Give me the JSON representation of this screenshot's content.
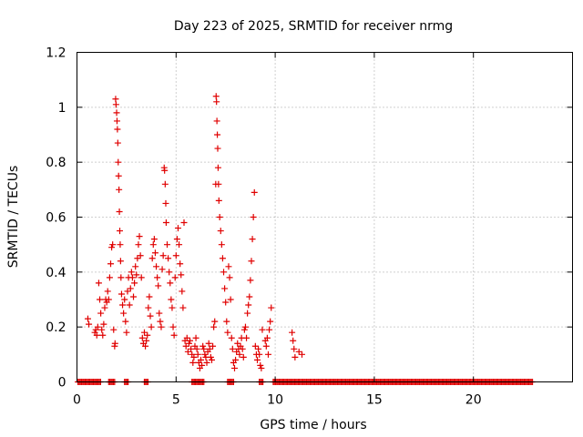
{
  "chart_data": {
    "type": "scatter",
    "title": "Day 223 of 2025, SRMTID for receiver nrmg",
    "xlabel": "GPS time / hours",
    "ylabel": "SRMTID / TECUs",
    "xlim": [
      0,
      25
    ],
    "ylim": [
      0,
      1.2
    ],
    "xticks": [
      0,
      5,
      10,
      15,
      20
    ],
    "xtick_labels": [
      "0",
      "5",
      "10",
      "15",
      "20"
    ],
    "yticks": [
      0,
      0.2,
      0.4,
      0.6,
      0.8,
      1,
      1.2
    ],
    "ytick_labels": [
      "0",
      "0.2",
      "0.4",
      "0.6",
      "0.8",
      "1",
      "1.2"
    ],
    "grid": true,
    "marker": "+",
    "color": "#e00000",
    "series": [
      {
        "name": "SRMTID",
        "points": [
          [
            0.55,
            0.23
          ],
          [
            0.6,
            0.21
          ],
          [
            0.9,
            0.18
          ],
          [
            0.95,
            0.19
          ],
          [
            1.0,
            0.17
          ],
          [
            1.05,
            0.2
          ],
          [
            1.1,
            0.36
          ],
          [
            1.15,
            0.3
          ],
          [
            1.2,
            0.25
          ],
          [
            1.25,
            0.19
          ],
          [
            1.3,
            0.17
          ],
          [
            1.35,
            0.21
          ],
          [
            1.4,
            0.27
          ],
          [
            1.45,
            0.3
          ],
          [
            1.5,
            0.29
          ],
          [
            1.55,
            0.33
          ],
          [
            1.6,
            0.3
          ],
          [
            1.65,
            0.38
          ],
          [
            1.7,
            0.43
          ],
          [
            1.75,
            0.49
          ],
          [
            1.8,
            0.5
          ],
          [
            1.85,
            0.19
          ],
          [
            1.9,
            0.13
          ],
          [
            1.92,
            0.14
          ],
          [
            1.95,
            1.03
          ],
          [
            1.97,
            1.01
          ],
          [
            2.0,
            0.98
          ],
          [
            2.02,
            0.95
          ],
          [
            2.04,
            0.92
          ],
          [
            2.06,
            0.87
          ],
          [
            2.08,
            0.8
          ],
          [
            2.1,
            0.75
          ],
          [
            2.12,
            0.7
          ],
          [
            2.14,
            0.62
          ],
          [
            2.16,
            0.55
          ],
          [
            2.18,
            0.5
          ],
          [
            2.2,
            0.44
          ],
          [
            2.22,
            0.38
          ],
          [
            2.25,
            0.32
          ],
          [
            2.3,
            0.28
          ],
          [
            2.35,
            0.25
          ],
          [
            2.4,
            0.3
          ],
          [
            2.45,
            0.22
          ],
          [
            2.5,
            0.18
          ],
          [
            2.55,
            0.33
          ],
          [
            2.6,
            0.38
          ],
          [
            2.65,
            0.28
          ],
          [
            2.7,
            0.34
          ],
          [
            2.75,
            0.4
          ],
          [
            2.8,
            0.38
          ],
          [
            2.85,
            0.31
          ],
          [
            2.9,
            0.36
          ],
          [
            2.95,
            0.42
          ],
          [
            3.0,
            0.39
          ],
          [
            3.05,
            0.45
          ],
          [
            3.1,
            0.5
          ],
          [
            3.15,
            0.53
          ],
          [
            3.2,
            0.46
          ],
          [
            3.25,
            0.38
          ],
          [
            3.3,
            0.16
          ],
          [
            3.35,
            0.14
          ],
          [
            3.4,
            0.18
          ],
          [
            3.45,
            0.13
          ],
          [
            3.5,
            0.15
          ],
          [
            3.55,
            0.17
          ],
          [
            3.6,
            0.27
          ],
          [
            3.65,
            0.31
          ],
          [
            3.7,
            0.24
          ],
          [
            3.75,
            0.2
          ],
          [
            3.8,
            0.45
          ],
          [
            3.85,
            0.5
          ],
          [
            3.9,
            0.52
          ],
          [
            3.95,
            0.47
          ],
          [
            4.0,
            0.42
          ],
          [
            4.05,
            0.38
          ],
          [
            4.1,
            0.35
          ],
          [
            4.15,
            0.25
          ],
          [
            4.2,
            0.22
          ],
          [
            4.25,
            0.2
          ],
          [
            4.3,
            0.41
          ],
          [
            4.35,
            0.46
          ],
          [
            4.4,
            0.78
          ],
          [
            4.42,
            0.77
          ],
          [
            4.45,
            0.72
          ],
          [
            4.48,
            0.65
          ],
          [
            4.5,
            0.58
          ],
          [
            4.55,
            0.5
          ],
          [
            4.6,
            0.45
          ],
          [
            4.65,
            0.4
          ],
          [
            4.7,
            0.36
          ],
          [
            4.75,
            0.3
          ],
          [
            4.8,
            0.27
          ],
          [
            4.85,
            0.2
          ],
          [
            4.9,
            0.17
          ],
          [
            4.95,
            0.38
          ],
          [
            5.0,
            0.46
          ],
          [
            5.05,
            0.52
          ],
          [
            5.1,
            0.56
          ],
          [
            5.15,
            0.5
          ],
          [
            5.2,
            0.43
          ],
          [
            5.25,
            0.39
          ],
          [
            5.3,
            0.33
          ],
          [
            5.35,
            0.27
          ],
          [
            5.4,
            0.58
          ],
          [
            5.45,
            0.15
          ],
          [
            5.5,
            0.13
          ],
          [
            5.55,
            0.16
          ],
          [
            5.6,
            0.11
          ],
          [
            5.65,
            0.14
          ],
          [
            5.7,
            0.15
          ],
          [
            5.75,
            0.12
          ],
          [
            5.8,
            0.1
          ],
          [
            5.85,
            0.07
          ],
          [
            5.9,
            0.09
          ],
          [
            5.95,
            0.13
          ],
          [
            6.0,
            0.16
          ],
          [
            6.05,
            0.12
          ],
          [
            6.1,
            0.1
          ],
          [
            6.15,
            0.07
          ],
          [
            6.2,
            0.05
          ],
          [
            6.25,
            0.08
          ],
          [
            6.3,
            0.06
          ],
          [
            6.35,
            0.13
          ],
          [
            6.4,
            0.12
          ],
          [
            6.45,
            0.1
          ],
          [
            6.5,
            0.09
          ],
          [
            6.55,
            0.07
          ],
          [
            6.6,
            0.11
          ],
          [
            6.65,
            0.14
          ],
          [
            6.7,
            0.12
          ],
          [
            6.75,
            0.09
          ],
          [
            6.8,
            0.08
          ],
          [
            6.85,
            0.13
          ],
          [
            6.9,
            0.2
          ],
          [
            6.95,
            0.22
          ],
          [
            7.0,
            0.72
          ],
          [
            7.02,
            1.04
          ],
          [
            7.04,
            1.02
          ],
          [
            7.06,
            0.95
          ],
          [
            7.08,
            0.9
          ],
          [
            7.1,
            0.85
          ],
          [
            7.12,
            0.78
          ],
          [
            7.14,
            0.72
          ],
          [
            7.16,
            0.66
          ],
          [
            7.2,
            0.6
          ],
          [
            7.25,
            0.55
          ],
          [
            7.3,
            0.5
          ],
          [
            7.35,
            0.45
          ],
          [
            7.4,
            0.4
          ],
          [
            7.45,
            0.34
          ],
          [
            7.5,
            0.29
          ],
          [
            7.55,
            0.22
          ],
          [
            7.6,
            0.18
          ],
          [
            7.65,
            0.42
          ],
          [
            7.7,
            0.38
          ],
          [
            7.75,
            0.3
          ],
          [
            7.8,
            0.16
          ],
          [
            7.85,
            0.12
          ],
          [
            7.9,
            0.07
          ],
          [
            7.95,
            0.05
          ],
          [
            8.0,
            0.08
          ],
          [
            8.05,
            0.11
          ],
          [
            8.1,
            0.14
          ],
          [
            8.15,
            0.12
          ],
          [
            8.2,
            0.1
          ],
          [
            8.25,
            0.13
          ],
          [
            8.3,
            0.16
          ],
          [
            8.35,
            0.12
          ],
          [
            8.4,
            0.09
          ],
          [
            8.45,
            0.19
          ],
          [
            8.5,
            0.2
          ],
          [
            8.55,
            0.16
          ],
          [
            8.6,
            0.25
          ],
          [
            8.65,
            0.28
          ],
          [
            8.7,
            0.31
          ],
          [
            8.75,
            0.37
          ],
          [
            8.8,
            0.44
          ],
          [
            8.85,
            0.52
          ],
          [
            8.9,
            0.6
          ],
          [
            8.95,
            0.69
          ],
          [
            9.0,
            0.13
          ],
          [
            9.05,
            0.1
          ],
          [
            9.1,
            0.08
          ],
          [
            9.15,
            0.12
          ],
          [
            9.2,
            0.1
          ],
          [
            9.25,
            0.06
          ],
          [
            9.3,
            0.05
          ],
          [
            9.35,
            0.19
          ],
          [
            9.5,
            0.15
          ],
          [
            9.55,
            0.13
          ],
          [
            9.6,
            0.16
          ],
          [
            9.65,
            0.1
          ],
          [
            9.7,
            0.19
          ],
          [
            9.75,
            0.22
          ],
          [
            9.8,
            0.27
          ],
          [
            10.85,
            0.18
          ],
          [
            10.9,
            0.15
          ],
          [
            10.95,
            0.12
          ],
          [
            11.0,
            0.09
          ],
          [
            11.2,
            0.11
          ],
          [
            11.35,
            0.1
          ]
        ]
      }
    ],
    "zero_points_ranges": [
      [
        0.05,
        1.2
      ],
      [
        1.6,
        1.9
      ],
      [
        2.4,
        2.6
      ],
      [
        3.4,
        3.6
      ],
      [
        5.8,
        6.4
      ],
      [
        7.6,
        7.9
      ],
      [
        9.2,
        9.4
      ],
      [
        9.9,
        23.0
      ]
    ]
  }
}
